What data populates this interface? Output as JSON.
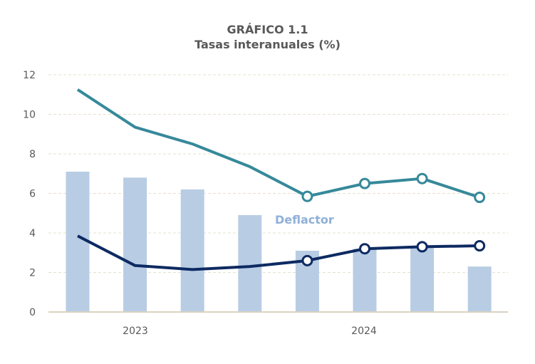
{
  "chart_data": {
    "type": "bar+line",
    "title": "GRÁFICO 1.1",
    "subtitle": "Tasas interanuales (%)",
    "xlabel": "",
    "ylabel": "",
    "ylim": [
      0,
      12
    ],
    "yticks": [
      0,
      2,
      4,
      6,
      8,
      10,
      12
    ],
    "x_group_labels": [
      "2023",
      "2024"
    ],
    "grid": true,
    "colors": {
      "bars": "#b8cce4",
      "teal_line": "#36899a",
      "navy_line": "#0d2a62",
      "annotation": "#8fb0d8"
    },
    "series": [
      {
        "name": "Deflactor",
        "type": "bar",
        "values": [
          7.1,
          6.8,
          6.2,
          4.9,
          3.1,
          3.2,
          3.3,
          2.3
        ]
      },
      {
        "type": "line",
        "color": "teal",
        "values": [
          11.25,
          9.35,
          8.5,
          7.35,
          5.85,
          6.5,
          6.75,
          5.8
        ],
        "hollow_markers_from_index": 4
      },
      {
        "type": "line",
        "color": "navy",
        "values": [
          3.85,
          2.35,
          2.15,
          2.3,
          2.6,
          3.2,
          3.3,
          3.35
        ],
        "hollow_markers_from_index": 4
      }
    ],
    "annotations": [
      {
        "text": "Deflactor"
      }
    ]
  }
}
